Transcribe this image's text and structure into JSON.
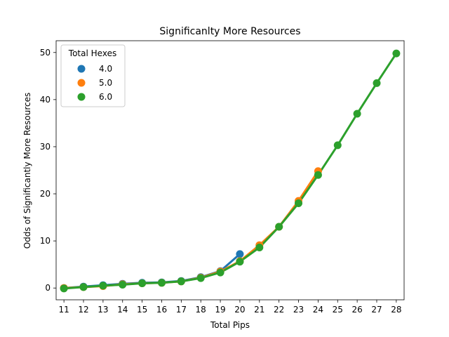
{
  "chart_data": {
    "type": "line",
    "title": "Significanlty More Resources",
    "xlabel": "Total Pips",
    "ylabel": "Odds of Significantly More Resources",
    "x": [
      11,
      12,
      13,
      14,
      15,
      16,
      17,
      18,
      19,
      20,
      21,
      22,
      23,
      24,
      25,
      26,
      27,
      28
    ],
    "xlim": [
      10.6,
      28.4
    ],
    "ylim": [
      -2.5,
      52.5
    ],
    "yticks": [
      0,
      10,
      20,
      30,
      40,
      50
    ],
    "grid": false,
    "legend": {
      "title": "Total Hexes",
      "placement": "top-left"
    },
    "series": [
      {
        "name": "4.0",
        "color": "#1f77b4",
        "x": [
          11,
          12,
          13,
          14,
          15,
          16,
          17,
          18,
          19,
          20
        ],
        "values": [
          0.0,
          0.3,
          0.6,
          0.9,
          1.1,
          1.2,
          1.5,
          2.3,
          3.6,
          7.2
        ]
      },
      {
        "name": "5.0",
        "color": "#ff7f0e",
        "x": [
          11,
          12,
          13,
          14,
          15,
          16,
          17,
          18,
          19,
          20,
          21,
          22,
          23,
          24
        ],
        "values": [
          0.0,
          0.2,
          0.4,
          0.8,
          1.0,
          1.1,
          1.4,
          2.2,
          3.5,
          5.7,
          9.1,
          13.0,
          18.5,
          24.8
        ]
      },
      {
        "name": "6.0",
        "color": "#2ca02c",
        "x": [
          11,
          12,
          13,
          14,
          15,
          16,
          17,
          18,
          19,
          20,
          21,
          22,
          23,
          24,
          25,
          26,
          27,
          28
        ],
        "values": [
          -0.1,
          0.2,
          0.5,
          0.7,
          1.0,
          1.1,
          1.4,
          2.1,
          3.3,
          5.6,
          8.6,
          13.0,
          18.0,
          24.0,
          30.3,
          37.0,
          43.5,
          49.8
        ]
      }
    ]
  }
}
